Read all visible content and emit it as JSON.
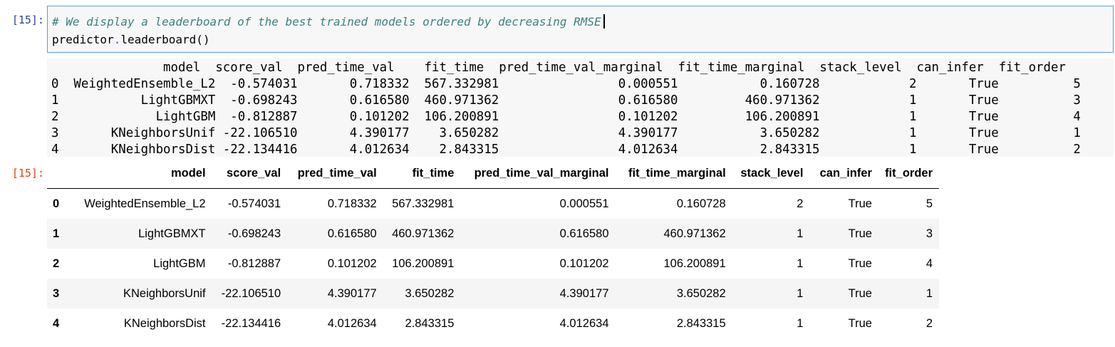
{
  "cell": {
    "in_prompt": "[15]:",
    "out_prompt": "[15]:",
    "code_comment": "# We display a leaderboard of the best trained models ordered by decreasing RMSE",
    "code_obj": "predictor",
    "code_dot": ".",
    "code_call": "leaderboard()"
  },
  "stream_text": "               model  score_val  pred_time_val    fit_time  pred_time_val_marginal  fit_time_marginal  stack_level  can_infer  fit_order\n0  WeightedEnsemble_L2  -0.574031       0.718332  567.332981                0.000551           0.160728            2       True          5\n1           LightGBMXT  -0.698243       0.616580  460.971362                0.616580         460.971362            1       True          3\n2             LightGBM  -0.812887       0.101202  106.200891                0.101202         106.200891            1       True          4\n3       KNeighborsUnif -22.106510       4.390177    3.650282                4.390177           3.650282            1       True          1\n4       KNeighborsDist -22.134416       4.012634    2.843315                4.012634           2.843315            1       True          2",
  "table": {
    "columns": [
      "",
      "model",
      "score_val",
      "pred_time_val",
      "fit_time",
      "pred_time_val_marginal",
      "fit_time_marginal",
      "stack_level",
      "can_infer",
      "fit_order"
    ],
    "rows": [
      [
        "0",
        "WeightedEnsemble_L2",
        "-0.574031",
        "0.718332",
        "567.332981",
        "0.000551",
        "0.160728",
        "2",
        "True",
        "5"
      ],
      [
        "1",
        "LightGBMXT",
        "-0.698243",
        "0.616580",
        "460.971362",
        "0.616580",
        "460.971362",
        "1",
        "True",
        "3"
      ],
      [
        "2",
        "LightGBM",
        "-0.812887",
        "0.101202",
        "106.200891",
        "0.101202",
        "106.200891",
        "1",
        "True",
        "4"
      ],
      [
        "3",
        "KNeighborsUnif",
        "-22.106510",
        "4.390177",
        "3.650282",
        "4.390177",
        "3.650282",
        "1",
        "True",
        "1"
      ],
      [
        "4",
        "KNeighborsDist",
        "-22.134416",
        "4.012634",
        "2.843315",
        "4.012634",
        "2.843315",
        "1",
        "True",
        "2"
      ]
    ]
  }
}
